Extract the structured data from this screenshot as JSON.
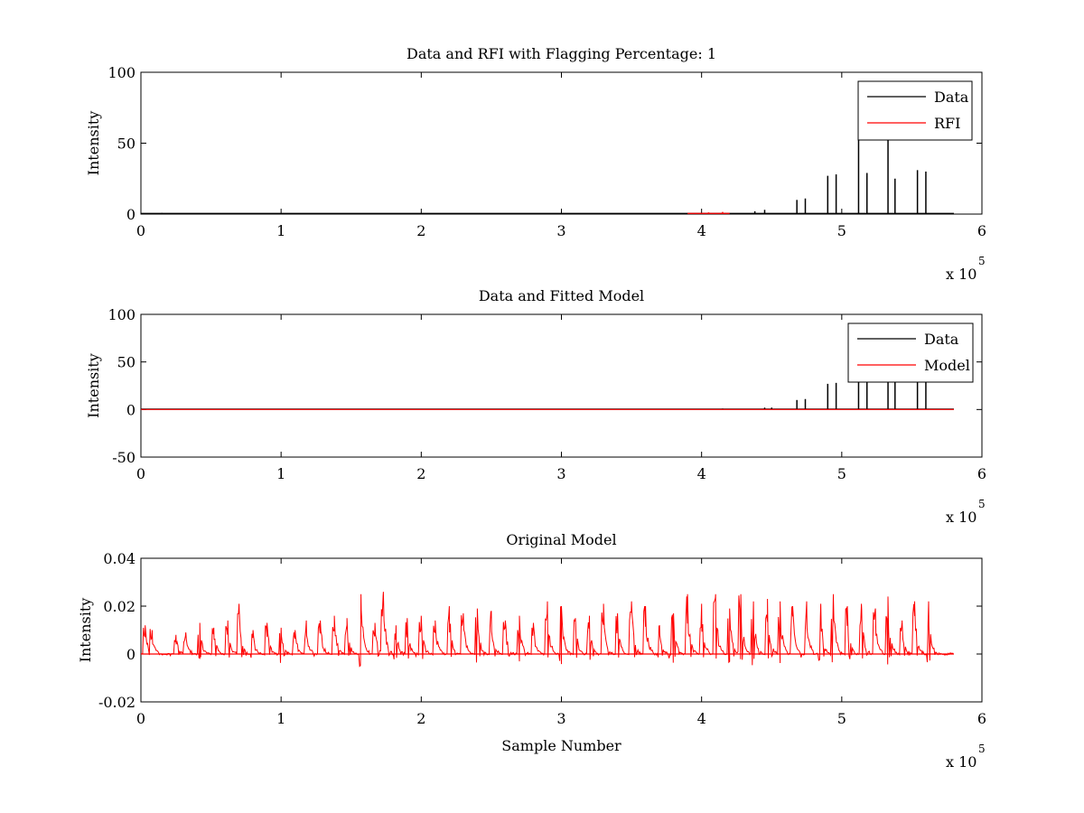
{
  "figure": {
    "background": "#ffffff",
    "x_exponent_base": "x 10",
    "x_exponent_power": "5"
  },
  "chart_data": [
    {
      "type": "line",
      "title": "Data and RFI with Flagging Percentage: 1",
      "xlabel": "",
      "ylabel": "Intensity",
      "xlim": [
        0,
        600000
      ],
      "ylim": [
        0,
        100
      ],
      "x_ticks": [
        0,
        100000,
        200000,
        300000,
        400000,
        500000,
        600000
      ],
      "x_tick_labels": [
        "0",
        "1",
        "2",
        "3",
        "4",
        "5",
        "6"
      ],
      "y_ticks": [
        0,
        50,
        100
      ],
      "y_tick_labels": [
        "0",
        "50",
        "100"
      ],
      "legend": {
        "position": "top-right",
        "entries": [
          "Data",
          "RFI"
        ]
      },
      "series": [
        {
          "name": "Data",
          "color": "#000000",
          "baseline": 0.5,
          "x_end": 580000,
          "spikes": [
            [
              15000,
              0.8
            ],
            [
              20000,
              0.6
            ],
            [
              438000,
              2
            ],
            [
              445000,
              3
            ],
            [
              468000,
              10
            ],
            [
              474000,
              11
            ],
            [
              490000,
              27
            ],
            [
              496000,
              28
            ],
            [
              512000,
              70
            ],
            [
              518000,
              29
            ],
            [
              533000,
              80
            ],
            [
              538000,
              25
            ],
            [
              554000,
              31
            ],
            [
              560000,
              30
            ]
          ]
        },
        {
          "name": "RFI",
          "color": "#ff0000",
          "baseline": 0.5,
          "x_end": 420000,
          "x_start": 390000,
          "spikes": [
            [
              405000,
              1.2
            ],
            [
              415000,
              1.5
            ]
          ]
        }
      ]
    },
    {
      "type": "line",
      "title": "Data and Fitted Model",
      "xlabel": "",
      "ylabel": "Intensity",
      "xlim": [
        0,
        600000
      ],
      "ylim": [
        -50,
        100
      ],
      "x_ticks": [
        0,
        100000,
        200000,
        300000,
        400000,
        500000,
        600000
      ],
      "x_tick_labels": [
        "0",
        "1",
        "2",
        "3",
        "4",
        "5",
        "6"
      ],
      "y_ticks": [
        -50,
        0,
        50,
        100
      ],
      "y_tick_labels": [
        "-50",
        "0",
        "50",
        "100"
      ],
      "legend": {
        "position": "top-right",
        "entries": [
          "Data",
          "Model"
        ]
      },
      "series": [
        {
          "name": "Data",
          "color": "#000000",
          "baseline": 0.5,
          "x_end": 580000,
          "spikes": [
            [
              415000,
              1
            ],
            [
              445000,
              2
            ],
            [
              450000,
              2
            ],
            [
              468000,
              10
            ],
            [
              474000,
              11
            ],
            [
              490000,
              27
            ],
            [
              496000,
              28
            ],
            [
              512000,
              60
            ],
            [
              518000,
              50
            ],
            [
              533000,
              70
            ],
            [
              538000,
              55
            ],
            [
              554000,
              60
            ],
            [
              560000,
              55
            ]
          ]
        },
        {
          "name": "Model",
          "color": "#ff0000",
          "baseline": 0,
          "x_end": 580000,
          "spikes": []
        }
      ]
    },
    {
      "type": "line",
      "title": "Original Model",
      "xlabel": "Sample Number",
      "ylabel": "Intensity",
      "xlim": [
        0,
        600000
      ],
      "ylim": [
        -0.02,
        0.04
      ],
      "x_ticks": [
        0,
        100000,
        200000,
        300000,
        400000,
        500000,
        600000
      ],
      "x_tick_labels": [
        "0",
        "1",
        "2",
        "3",
        "4",
        "5",
        "6"
      ],
      "y_ticks": [
        -0.02,
        0,
        0.02,
        0.04
      ],
      "y_tick_labels": [
        "-0.02",
        "0",
        "0.02",
        "0.04"
      ],
      "series": [
        {
          "color": "#ff0000",
          "baseline": 0,
          "x_end": 580000,
          "peaks": [
            [
              3000,
              0.012
            ],
            [
              8000,
              0.01
            ],
            [
              25000,
              0.008
            ],
            [
              32000,
              0.009
            ],
            [
              42000,
              0.013
            ],
            [
              52000,
              0.011
            ],
            [
              62000,
              0.014
            ],
            [
              70000,
              0.021
            ],
            [
              80000,
              0.01
            ],
            [
              90000,
              0.013
            ],
            [
              100000,
              0.011
            ],
            [
              110000,
              0.01
            ],
            [
              118000,
              0.014
            ],
            [
              128000,
              0.014
            ],
            [
              138000,
              0.016
            ],
            [
              147000,
              0.015
            ],
            [
              157000,
              0.025
            ],
            [
              167000,
              0.013
            ],
            [
              173000,
              0.026
            ],
            [
              182000,
              0.012
            ],
            [
              190000,
              0.015
            ],
            [
              200000,
              0.016
            ],
            [
              210000,
              0.014
            ],
            [
              220000,
              0.02
            ],
            [
              230000,
              0.017
            ],
            [
              240000,
              0.019
            ],
            [
              250000,
              0.018
            ],
            [
              260000,
              0.014
            ],
            [
              270000,
              0.016
            ],
            [
              280000,
              0.013
            ],
            [
              290000,
              0.022
            ],
            [
              300000,
              0.02
            ],
            [
              310000,
              0.015
            ],
            [
              320000,
              0.016
            ],
            [
              330000,
              0.021
            ],
            [
              340000,
              0.017
            ],
            [
              350000,
              0.022
            ],
            [
              360000,
              0.02
            ],
            [
              370000,
              0.012
            ],
            [
              380000,
              0.017
            ],
            [
              390000,
              0.025
            ],
            [
              400000,
              0.021
            ],
            [
              410000,
              0.025
            ],
            [
              420000,
              0.019
            ],
            [
              428000,
              0.025
            ],
            [
              437000,
              0.022
            ],
            [
              447000,
              0.023
            ],
            [
              456000,
              0.022
            ],
            [
              465000,
              0.02
            ],
            [
              475000,
              0.022
            ],
            [
              485000,
              0.021
            ],
            [
              494000,
              0.025
            ],
            [
              504000,
              0.02
            ],
            [
              514000,
              0.021
            ],
            [
              524000,
              0.019
            ],
            [
              533000,
              0.024
            ],
            [
              543000,
              0.014
            ],
            [
              552000,
              0.022
            ],
            [
              562000,
              0.022
            ]
          ]
        }
      ]
    }
  ]
}
